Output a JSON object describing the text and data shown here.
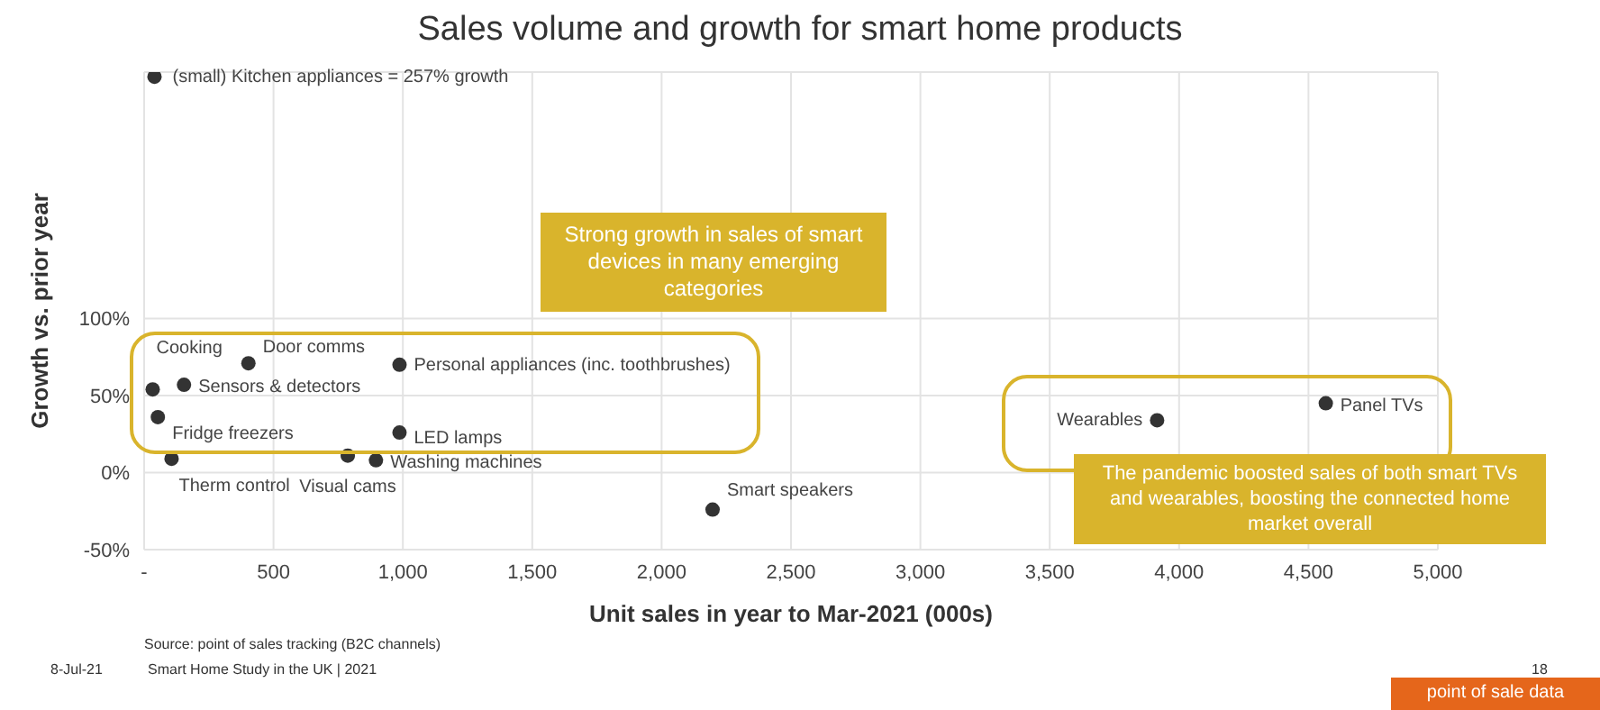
{
  "chart_data": {
    "type": "scatter",
    "title": "Sales volume and growth for smart home products",
    "xlabel": "Unit sales in year to Mar-2021 (000s)",
    "ylabel": "Growth vs. prior year",
    "marker": "circle",
    "grid": true,
    "legend": false,
    "xlim": [
      0,
      5000
    ],
    "xticks": [
      {
        "value": 0,
        "label": "-"
      },
      500,
      {
        "value": 1000,
        "label": "1,000"
      },
      {
        "value": 1500,
        "label": "1,500"
      },
      {
        "value": 2000,
        "label": "2,000"
      },
      {
        "value": 2500,
        "label": "2,500"
      },
      {
        "value": 3000,
        "label": "3,000"
      },
      {
        "value": 3500,
        "label": "3,500"
      },
      {
        "value": 4000,
        "label": "4,000"
      },
      {
        "value": 4500,
        "label": "4,500"
      },
      {
        "value": 5000,
        "label": "5,000"
      }
    ],
    "ylim": [
      -50,
      260
    ],
    "yticks": [
      {
        "value": -50,
        "label": "-50%"
      },
      {
        "value": 0,
        "label": "0%"
      },
      {
        "value": 50,
        "label": "50%"
      },
      {
        "value": 100,
        "label": "100%"
      }
    ],
    "series": [
      {
        "name": "(small) Kitchen appliances = 257% growth",
        "color": "#333333",
        "x": [
          40
        ],
        "values": [
          257
        ]
      },
      {
        "name": "Cooking",
        "color": "#333333",
        "x": [
          33
        ],
        "values": [
          54
        ]
      },
      {
        "name": "Door comms",
        "color": "#333333",
        "x": [
          403
        ],
        "values": [
          71
        ]
      },
      {
        "name": "Sensors & detectors",
        "color": "#333333",
        "x": [
          154
        ],
        "values": [
          57
        ]
      },
      {
        "name": "Personal appliances (inc. toothbrushes)",
        "color": "#333333",
        "x": [
          987
        ],
        "values": [
          70
        ]
      },
      {
        "name": "Fridge freezers",
        "color": "#333333",
        "x": [
          53
        ],
        "values": [
          36
        ]
      },
      {
        "name": "LED lamps",
        "color": "#333333",
        "x": [
          987
        ],
        "values": [
          26
        ]
      },
      {
        "name": "Therm control",
        "color": "#333333",
        "x": [
          106
        ],
        "values": [
          9
        ]
      },
      {
        "name": "Visual cams",
        "color": "#333333",
        "x": [
          787
        ],
        "values": [
          11
        ]
      },
      {
        "name": "Washing machines",
        "color": "#333333",
        "x": [
          896
        ],
        "values": [
          8
        ]
      },
      {
        "name": "Smart speakers",
        "color": "#333333",
        "x": [
          2197
        ],
        "values": [
          -24
        ]
      },
      {
        "name": "Wearables",
        "color": "#333333",
        "x": [
          3915
        ],
        "values": [
          34
        ]
      },
      {
        "name": "Panel TVs",
        "color": "#333333",
        "x": [
          4567
        ],
        "values": [
          45
        ]
      }
    ],
    "annotations": [
      "Strong growth in sales of smart devices in many emerging categories",
      "The pandemic boosted sales of both smart TVs and wearables, boosting the connected home market overall",
      "Source: point of sales tracking (B2C channels)",
      "8-Jul-21",
      "Smart Home Study in the UK | 2021",
      "18",
      "point of sale data"
    ]
  }
}
